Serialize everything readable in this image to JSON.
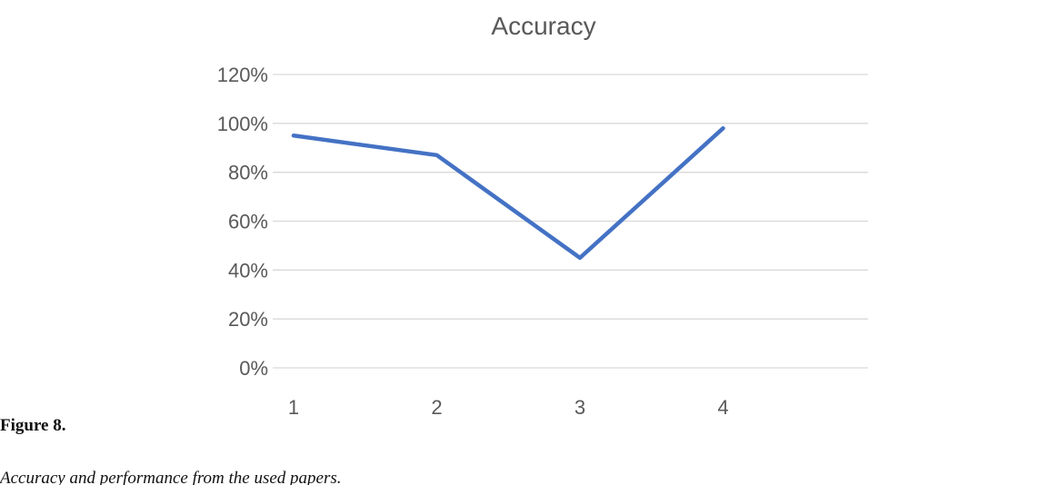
{
  "chart_data": {
    "type": "line",
    "title": "Accuracy",
    "categories": [
      "1",
      "2",
      "3",
      "4"
    ],
    "series": [
      {
        "name": "Accuracy",
        "color": "#4472c4",
        "values": [
          95,
          87,
          45,
          98
        ]
      }
    ],
    "ylim": [
      0,
      120
    ],
    "yticks": [
      {
        "value": 0,
        "label": "0%"
      },
      {
        "value": 20,
        "label": "20%"
      },
      {
        "value": 40,
        "label": "40%"
      },
      {
        "value": 60,
        "label": "60%"
      },
      {
        "value": 80,
        "label": "80%"
      },
      {
        "value": 100,
        "label": "100%"
      },
      {
        "value": 120,
        "label": "120%"
      }
    ],
    "grid": true
  },
  "caption": {
    "label": "Figure 8.",
    "text": "Accuracy and performance from the used papers."
  }
}
